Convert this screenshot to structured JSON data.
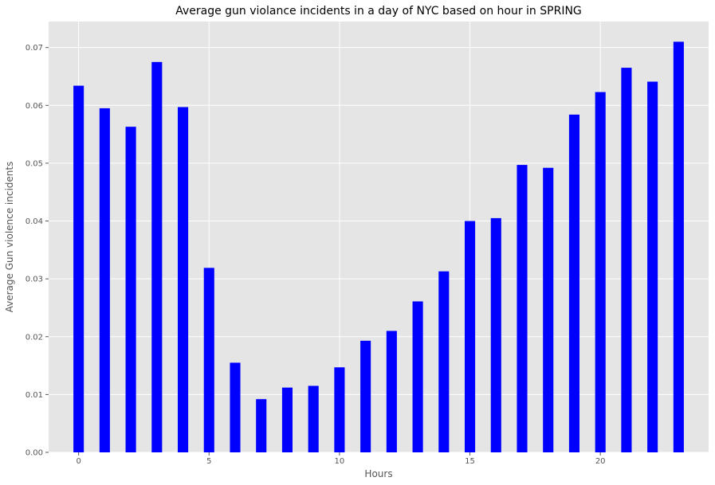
{
  "chart_data": {
    "type": "bar",
    "title": "Average gun violance incidents in a day of NYC based on hour in SPRING",
    "xlabel": "Hours",
    "ylabel": "Average Gun violence incidents",
    "x": [
      0,
      1,
      2,
      3,
      4,
      5,
      6,
      7,
      8,
      9,
      10,
      11,
      12,
      13,
      14,
      15,
      16,
      17,
      18,
      19,
      20,
      21,
      22,
      23
    ],
    "values": [
      0.0634,
      0.0595,
      0.0563,
      0.0675,
      0.0597,
      0.0319,
      0.0155,
      0.0092,
      0.0112,
      0.0115,
      0.0147,
      0.0193,
      0.021,
      0.0261,
      0.0313,
      0.04,
      0.0405,
      0.0497,
      0.0492,
      0.0584,
      0.0623,
      0.0665,
      0.0641,
      0.071
    ],
    "xlim": [
      -1.15,
      24.15
    ],
    "ylim": [
      0,
      0.0745
    ],
    "xticks": [
      0,
      5,
      10,
      15,
      20
    ],
    "xtick_labels": [
      "0",
      "5",
      "10",
      "15",
      "20"
    ],
    "yticks": [
      0,
      0.01,
      0.02,
      0.03,
      0.04,
      0.05,
      0.06,
      0.07
    ],
    "ytick_labels": [
      "0.00",
      "0.01",
      "0.02",
      "0.03",
      "0.04",
      "0.05",
      "0.06",
      "0.07"
    ],
    "bar_color": "#0000ff",
    "background_color": "#e5e5e5",
    "grid": true,
    "grid_color": "#ffffff"
  }
}
